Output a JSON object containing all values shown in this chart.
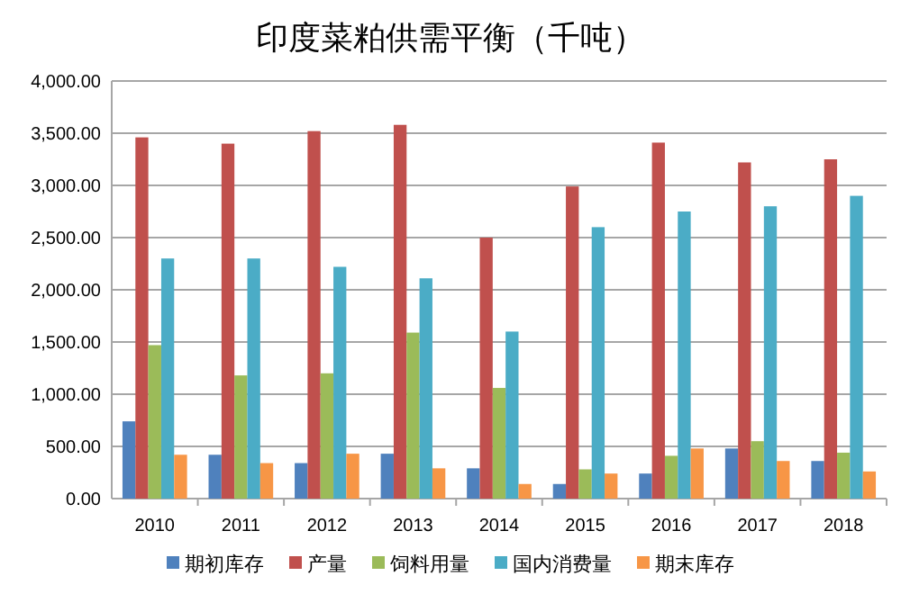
{
  "chart_data": {
    "type": "bar",
    "title": "印度菜粕供需平衡（千吨）",
    "categories": [
      "2010",
      "2011",
      "2012",
      "2013",
      "2014",
      "2015",
      "2016",
      "2017",
      "2018"
    ],
    "series": [
      {
        "name": "期初库存",
        "color": "#4f81bd",
        "values": [
          740,
          420,
          340,
          430,
          290,
          140,
          240,
          480,
          360
        ]
      },
      {
        "name": "产量",
        "color": "#c0504d",
        "values": [
          3460,
          3400,
          3520,
          3580,
          2500,
          2990,
          3410,
          3220,
          3250
        ]
      },
      {
        "name": "饲料用量",
        "color": "#9bbb59",
        "values": [
          1470,
          1180,
          1200,
          1590,
          1060,
          280,
          410,
          550,
          440
        ]
      },
      {
        "name": "国内消费量",
        "color": "#4bacc6",
        "values": [
          2300,
          2300,
          2220,
          2110,
          1600,
          2600,
          2750,
          2800,
          2900
        ]
      },
      {
        "name": "期末库存",
        "color": "#f79646",
        "values": [
          420,
          340,
          430,
          290,
          140,
          240,
          480,
          360,
          260
        ]
      }
    ],
    "ylim": [
      0,
      4000
    ],
    "yticks": [
      {
        "value": 0,
        "label": "0.00"
      },
      {
        "value": 500,
        "label": "500.00"
      },
      {
        "value": 1000,
        "label": "1,000.00"
      },
      {
        "value": 1500,
        "label": "1,500.00"
      },
      {
        "value": 2000,
        "label": "2,000.00"
      },
      {
        "value": 2500,
        "label": "2,500.00"
      },
      {
        "value": 3000,
        "label": "3,000.00"
      },
      {
        "value": 3500,
        "label": "3,500.00"
      },
      {
        "value": 4000,
        "label": "4,000.00"
      }
    ],
    "grid": "y",
    "legend": "bottom"
  }
}
